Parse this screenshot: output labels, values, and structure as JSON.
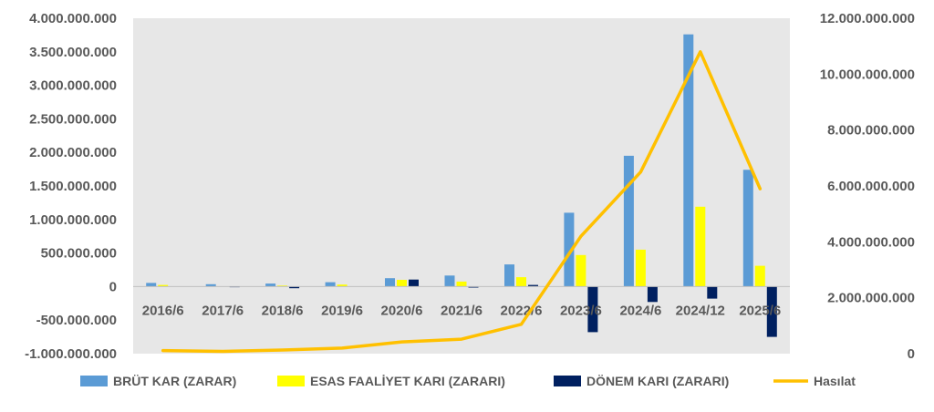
{
  "chart_data": {
    "type": "bar",
    "title": "",
    "xlabel": "",
    "ylabel": "",
    "categories": [
      "2016/6",
      "2017/6",
      "2018/6",
      "2019/6",
      "2020/6",
      "2021/6",
      "2022/6",
      "2023/6",
      "2024/6",
      "2024/12",
      "2025/6"
    ],
    "ylim": [
      -1000000000,
      4000000000
    ],
    "y_ticks": [
      -1000000000,
      -500000000,
      0,
      500000000,
      1000000000,
      1500000000,
      2000000000,
      2500000000,
      3000000000,
      3500000000,
      4000000000
    ],
    "y_tick_labels": [
      "-1.000.000.000",
      "-500.000.000",
      "0",
      "500.000.000",
      "1.000.000.000",
      "1.500.000.000",
      "2.000.000.000",
      "2.500.000.000",
      "3.000.000.000",
      "3.500.000.000",
      "4.000.000.000"
    ],
    "y2lim": [
      0,
      12000000000
    ],
    "y2_ticks": [
      0,
      2000000000,
      4000000000,
      6000000000,
      8000000000,
      10000000000,
      12000000000
    ],
    "y2_tick_labels": [
      "0",
      "2.000.000.000",
      "4.000.000.000",
      "6.000.000.000",
      "8.000.000.000",
      "10.000.000.000",
      "12.000.000.000"
    ],
    "grid": false,
    "legend_position": "bottom",
    "plot_background": "#e7e7e7",
    "series": [
      {
        "name": "BRÜT KAR (ZARAR)",
        "kind": "bar",
        "axis": "left",
        "color": "#5b9bd5",
        "values": [
          55000000,
          35000000,
          45000000,
          65000000,
          125000000,
          165000000,
          330000000,
          1100000000,
          1950000000,
          3760000000,
          1740000000
        ]
      },
      {
        "name": "ESAS FAALİYET KARI (ZARARI)",
        "kind": "bar",
        "axis": "left",
        "color": "#ffff00",
        "values": [
          25000000,
          5000000,
          15000000,
          30000000,
          100000000,
          75000000,
          140000000,
          470000000,
          550000000,
          1190000000,
          310000000
        ]
      },
      {
        "name": "DÖNEM KARI (ZARARI)",
        "kind": "bar",
        "axis": "left",
        "color": "#002060",
        "values": [
          5000000,
          -10000000,
          -25000000,
          5000000,
          105000000,
          -15000000,
          25000000,
          -680000000,
          -230000000,
          -180000000,
          -750000000
        ]
      },
      {
        "name": "Hasılat",
        "kind": "line",
        "axis": "right",
        "color": "#ffc000",
        "values": [
          110000000,
          80000000,
          130000000,
          200000000,
          420000000,
          520000000,
          1050000000,
          4200000000,
          6500000000,
          10800000000,
          5900000000
        ]
      }
    ]
  }
}
